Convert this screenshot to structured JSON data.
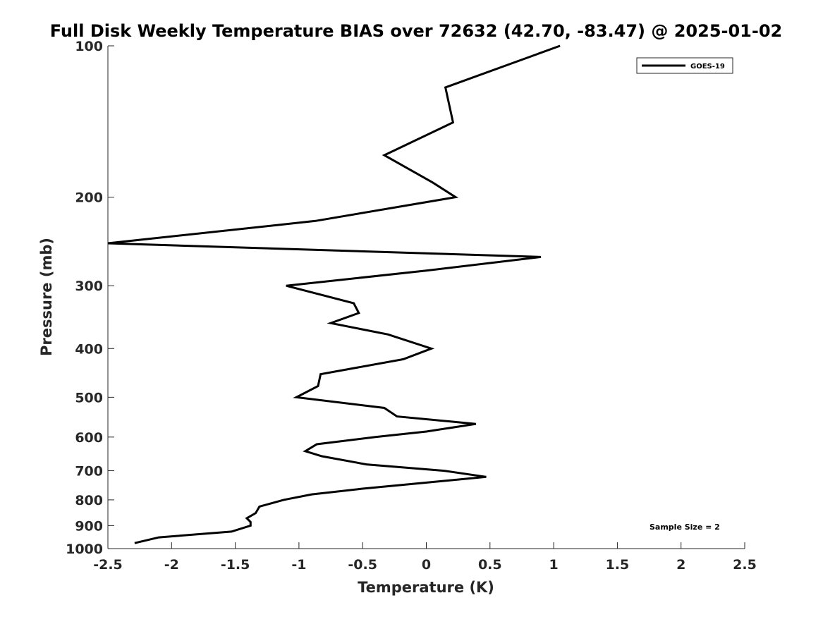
{
  "chart_data": {
    "type": "line",
    "title": "Full Disk Weekly Temperature BIAS over 72632 (42.70, -83.47) @ 2025-01-02",
    "xlabel": "Temperature (K)",
    "ylabel": "Pressure (mb)",
    "xlim": [
      -2.5,
      2.5
    ],
    "ylim": [
      100,
      1000
    ],
    "y_scale": "log",
    "y_reversed": true,
    "grid": false,
    "legend_position": "top-right",
    "annotation": "Sample Size = 2",
    "x_ticks": [
      -2.5,
      -2,
      -1.5,
      -1,
      -0.5,
      0,
      0.5,
      1,
      1.5,
      2,
      2.5
    ],
    "x_tick_labels": [
      "-2.5",
      "-2",
      "-1.5",
      "-1",
      "-0.5",
      "0",
      "0.5",
      "1",
      "1.5",
      "2",
      "2.5"
    ],
    "y_ticks": [
      100,
      200,
      300,
      400,
      500,
      600,
      700,
      800,
      900,
      1000
    ],
    "y_tick_labels": [
      "100",
      "200",
      "300",
      "400",
      "500",
      "600",
      "700",
      "800",
      "900",
      "1000"
    ],
    "series": [
      {
        "name": "GOES-19",
        "color": "#000000",
        "points": [
          {
            "t": 1.05,
            "p": 100
          },
          {
            "t": 0.15,
            "p": 121
          },
          {
            "t": 0.21,
            "p": 142
          },
          {
            "t": -0.33,
            "p": 165
          },
          {
            "t": 0.05,
            "p": 187
          },
          {
            "t": 0.23,
            "p": 200
          },
          {
            "t": -0.87,
            "p": 223
          },
          {
            "t": -2.5,
            "p": 247
          },
          {
            "t": 0.9,
            "p": 263
          },
          {
            "t": 0.0,
            "p": 280
          },
          {
            "t": -1.1,
            "p": 300
          },
          {
            "t": -0.57,
            "p": 325
          },
          {
            "t": -0.53,
            "p": 340
          },
          {
            "t": -0.75,
            "p": 356
          },
          {
            "t": -0.3,
            "p": 375
          },
          {
            "t": 0.04,
            "p": 400
          },
          {
            "t": -0.18,
            "p": 420
          },
          {
            "t": -0.83,
            "p": 450
          },
          {
            "t": -0.85,
            "p": 475
          },
          {
            "t": -1.02,
            "p": 500
          },
          {
            "t": -0.33,
            "p": 525
          },
          {
            "t": -0.23,
            "p": 546
          },
          {
            "t": 0.39,
            "p": 565
          },
          {
            "t": 0.0,
            "p": 585
          },
          {
            "t": -0.4,
            "p": 600
          },
          {
            "t": -0.86,
            "p": 620
          },
          {
            "t": -0.95,
            "p": 640
          },
          {
            "t": -0.82,
            "p": 655
          },
          {
            "t": -0.47,
            "p": 680
          },
          {
            "t": 0.14,
            "p": 700
          },
          {
            "t": 0.47,
            "p": 720
          },
          {
            "t": -0.02,
            "p": 740
          },
          {
            "t": -0.5,
            "p": 760
          },
          {
            "t": -0.9,
            "p": 780
          },
          {
            "t": -1.12,
            "p": 800
          },
          {
            "t": -1.31,
            "p": 825
          },
          {
            "t": -1.34,
            "p": 850
          },
          {
            "t": -1.41,
            "p": 870
          },
          {
            "t": -1.38,
            "p": 885
          },
          {
            "t": -1.38,
            "p": 900
          },
          {
            "t": -1.53,
            "p": 925
          },
          {
            "t": -2.1,
            "p": 950
          },
          {
            "t": -2.29,
            "p": 975
          }
        ]
      }
    ]
  }
}
